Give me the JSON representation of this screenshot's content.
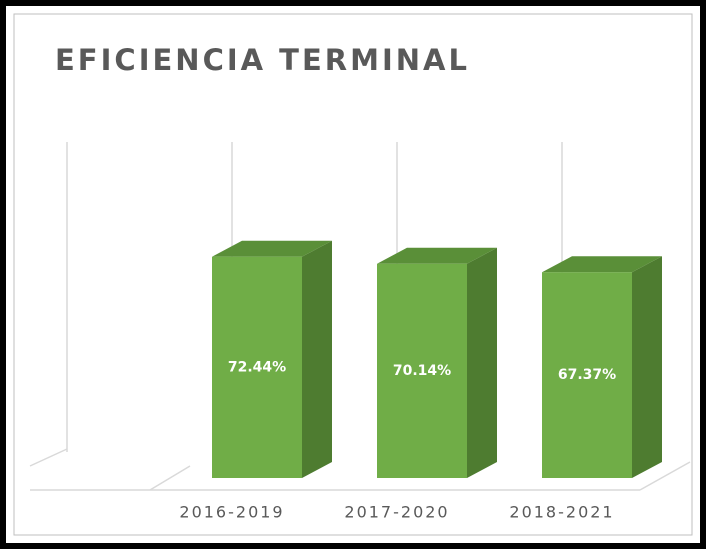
{
  "chart_data": {
    "type": "bar",
    "title": "EFICIENCIA TERMINAL",
    "categories": [
      "2016-2019",
      "2017-2020",
      "2018-2021"
    ],
    "values": [
      72.44,
      70.14,
      67.37
    ],
    "value_labels": [
      "72.44%",
      "70.14%",
      "67.37%"
    ],
    "color": "#70ad47",
    "ylim": [
      0,
      110
    ]
  }
}
